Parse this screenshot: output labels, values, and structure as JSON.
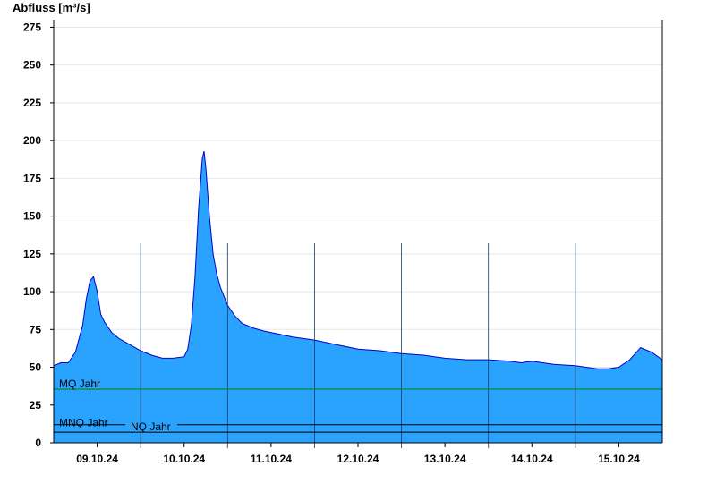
{
  "chart_data": {
    "type": "area",
    "ylabel": "Abfluss [m³/s]",
    "ylim": [
      0,
      280
    ],
    "yticks": [
      0,
      25,
      50,
      75,
      100,
      125,
      150,
      175,
      200,
      225,
      250,
      275
    ],
    "xlim": [
      "2024-10-08T12:00",
      "2024-10-15T12:00"
    ],
    "xtick_labels": [
      {
        "date": "2024-10-09T00:00",
        "label": "09.10.24"
      },
      {
        "date": "2024-10-10T00:00",
        "label": "10.10.24"
      },
      {
        "date": "2024-10-11T00:00",
        "label": "11.10.24"
      },
      {
        "date": "2024-10-12T00:00",
        "label": "12.10.24"
      },
      {
        "date": "2024-10-13T00:00",
        "label": "13.10.24"
      },
      {
        "date": "2024-10-14T00:00",
        "label": "14.10.24"
      },
      {
        "date": "2024-10-15T00:00",
        "label": "15.10.24"
      }
    ],
    "day_separators": [
      "2024-10-09T12:00",
      "2024-10-10T12:00",
      "2024-10-11T12:00",
      "2024-10-12T12:00",
      "2024-10-13T12:00",
      "2024-10-14T12:00"
    ],
    "fill_color": "#2aa3ff",
    "line_color": "#0000cc",
    "grid": "horizontal",
    "series": [
      {
        "x": [
          "2024-10-08T12:00",
          "2024-10-08T14:00",
          "2024-10-08T16:00",
          "2024-10-08T18:00",
          "2024-10-08T20:00",
          "2024-10-08T21:00",
          "2024-10-08T22:00",
          "2024-10-08T23:00",
          "2024-10-09T00:00",
          "2024-10-09T01:00",
          "2024-10-09T02:00",
          "2024-10-09T04:00",
          "2024-10-09T06:00",
          "2024-10-09T09:00",
          "2024-10-09T12:00",
          "2024-10-09T15:00",
          "2024-10-09T18:00",
          "2024-10-09T21:00",
          "2024-10-10T00:00",
          "2024-10-10T01:00",
          "2024-10-10T02:00",
          "2024-10-10T03:00",
          "2024-10-10T04:00",
          "2024-10-10T05:00",
          "2024-10-10T05:30",
          "2024-10-10T06:00",
          "2024-10-10T07:00",
          "2024-10-10T08:00",
          "2024-10-10T09:00",
          "2024-10-10T10:00",
          "2024-10-10T12:00",
          "2024-10-10T14:00",
          "2024-10-10T16:00",
          "2024-10-10T19:00",
          "2024-10-10T22:00",
          "2024-10-11T02:00",
          "2024-10-11T06:00",
          "2024-10-11T12:00",
          "2024-10-11T18:00",
          "2024-10-12T00:00",
          "2024-10-12T06:00",
          "2024-10-12T12:00",
          "2024-10-12T18:00",
          "2024-10-13T00:00",
          "2024-10-13T06:00",
          "2024-10-13T12:00",
          "2024-10-13T18:00",
          "2024-10-13T21:00",
          "2024-10-14T00:00",
          "2024-10-14T06:00",
          "2024-10-14T12:00",
          "2024-10-14T15:00",
          "2024-10-14T18:00",
          "2024-10-14T21:00",
          "2024-10-15T00:00",
          "2024-10-15T03:00",
          "2024-10-15T06:00",
          "2024-10-15T09:00",
          "2024-10-15T12:00"
        ],
        "y": [
          51,
          53,
          53,
          60,
          78,
          95,
          107,
          110,
          100,
          85,
          80,
          73,
          69,
          65,
          61,
          58,
          56,
          56,
          57,
          62,
          78,
          110,
          155,
          188,
          193,
          182,
          150,
          125,
          112,
          103,
          91,
          84,
          79,
          76,
          74,
          72,
          70,
          68,
          65,
          62,
          61,
          59,
          58,
          56,
          55,
          55,
          54,
          53,
          54,
          52,
          51,
          50,
          49,
          49,
          50,
          55,
          63,
          60,
          55
        ]
      }
    ],
    "reference_lines": [
      {
        "label": "MQ Jahr",
        "value": 35.5,
        "color": "#008000"
      },
      {
        "label": "MNQ Jahr",
        "value": 12,
        "color": "#000000"
      },
      {
        "label": "NQ Jahr",
        "value": 7,
        "color": "#000000"
      }
    ]
  }
}
